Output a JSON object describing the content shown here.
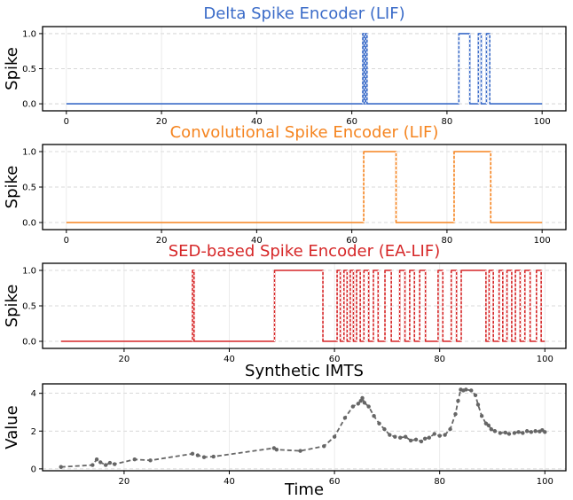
{
  "chart_data": [
    {
      "type": "line",
      "title": "Delta Spike Encoder (LIF)",
      "ylabel": "Spike",
      "xlabel": "",
      "color": "#3a6bc8",
      "xlim": [
        -5,
        105
      ],
      "ylim": [
        -0.1,
        1.1
      ],
      "xticks": [
        0,
        20,
        40,
        60,
        80,
        100
      ],
      "yticks": [
        0.0,
        0.5,
        1.0
      ],
      "ytick_labels": [
        "0.0",
        "0.5",
        "1.0"
      ],
      "x": [
        0,
        62.3,
        62.3,
        62.6,
        62.6,
        62.9,
        62.9,
        63.2,
        63.2,
        82.5,
        82.5,
        84.8,
        84.8,
        86.6,
        86.6,
        87.2,
        87.2,
        88.3,
        88.3,
        89.0,
        89.0,
        100
      ],
      "values": [
        0,
        0,
        1,
        1,
        0,
        0,
        1,
        1,
        0,
        0,
        1,
        1,
        0,
        0,
        1,
        1,
        0,
        0,
        1,
        1,
        0,
        0
      ]
    },
    {
      "type": "line",
      "title": "Convolutional Spike Encoder (LIF)",
      "ylabel": "Spike",
      "xlabel": "",
      "color": "#f5841f",
      "xlim": [
        -5,
        105
      ],
      "ylim": [
        -0.1,
        1.1
      ],
      "xticks": [
        0,
        20,
        40,
        60,
        80,
        100
      ],
      "yticks": [
        0.0,
        0.5,
        1.0
      ],
      "ytick_labels": [
        "0.0",
        "0.5",
        "1.0"
      ],
      "x": [
        0,
        62.5,
        62.5,
        69.3,
        69.3,
        81.5,
        81.5,
        89.2,
        89.2,
        100
      ],
      "values": [
        0,
        0,
        1,
        1,
        0,
        0,
        1,
        1,
        0,
        0
      ]
    },
    {
      "type": "line",
      "title": "SED-based Spike Encoder (EA-LIF)",
      "ylabel": "Spike",
      "xlabel": "",
      "color": "#d62728",
      "xlim": [
        4.5,
        104
      ],
      "ylim": [
        -0.1,
        1.1
      ],
      "xticks": [
        20,
        40,
        60,
        80,
        100
      ],
      "yticks": [
        0.0,
        0.5,
        1.0
      ],
      "ytick_labels": [
        "0.0",
        "0.5",
        "1.0"
      ],
      "x": [
        8,
        33,
        33,
        33.3,
        33.3,
        48.6,
        48.6,
        57.8,
        57.8,
        60.5,
        60.5,
        61.1,
        61.1,
        61.8,
        61.8,
        62.4,
        62.4,
        63.0,
        63.0,
        63.6,
        63.6,
        64.2,
        64.2,
        64.9,
        64.9,
        65.6,
        65.6,
        66.5,
        66.5,
        67.4,
        67.4,
        68.3,
        68.3,
        69.6,
        69.6,
        70.8,
        70.8,
        72.4,
        72.4,
        73.4,
        73.4,
        74.3,
        74.3,
        75.2,
        75.2,
        76.2,
        76.2,
        77.3,
        77.3,
        79.7,
        79.7,
        80.6,
        80.6,
        82.2,
        82.2,
        83.2,
        83.2,
        84.1,
        84.1,
        88.8,
        88.8,
        89.4,
        89.4,
        90.2,
        90.2,
        91.3,
        91.3,
        92.0,
        92.0,
        92.8,
        92.8,
        93.7,
        93.7,
        94.4,
        94.4,
        95.3,
        95.3,
        96.2,
        96.2,
        97.2,
        97.2,
        98.4,
        98.4,
        99.3,
        99.3,
        100
      ],
      "values": [
        0,
        0,
        1,
        1,
        0,
        0,
        1,
        1,
        0,
        0,
        1,
        1,
        0,
        0,
        1,
        1,
        0,
        0,
        1,
        1,
        0,
        0,
        1,
        1,
        0,
        0,
        1,
        1,
        0,
        0,
        1,
        1,
        0,
        0,
        1,
        1,
        0,
        0,
        1,
        1,
        0,
        0,
        1,
        1,
        0,
        0,
        1,
        1,
        0,
        0,
        1,
        1,
        0,
        0,
        1,
        1,
        0,
        0,
        1,
        1,
        0,
        0,
        1,
        1,
        0,
        0,
        1,
        1,
        0,
        0,
        1,
        1,
        0,
        0,
        1,
        1,
        0,
        0,
        1,
        1,
        0,
        0,
        1,
        1,
        0,
        0
      ]
    },
    {
      "type": "line",
      "title": "Synthetic IMTS",
      "ylabel": "Value",
      "xlabel": "Time",
      "color": "#666666",
      "marker": "circle",
      "xlim": [
        4.5,
        104
      ],
      "ylim": [
        -0.1,
        4.5
      ],
      "xticks": [
        20,
        40,
        60,
        80,
        100
      ],
      "yticks": [
        0,
        2,
        4
      ],
      "ytick_labels": [
        "0",
        "2",
        "4"
      ],
      "x": [
        8,
        14,
        14.8,
        15.5,
        16.5,
        17.3,
        18.2,
        22,
        25,
        33,
        34,
        35.2,
        37,
        48.5,
        49,
        53.5,
        58,
        60,
        62,
        63.5,
        64.5,
        65,
        65.3,
        65.7,
        66.5,
        67.5,
        68.5,
        69.5,
        70.5,
        71.5,
        72.5,
        73.5,
        74.5,
        75.5,
        76.5,
        77.2,
        78,
        79,
        80,
        81,
        82,
        83,
        83.5,
        84,
        84.5,
        85,
        86,
        86.8,
        87.3,
        88,
        88.8,
        89.3,
        89.8,
        90.5,
        91.5,
        92.5,
        93.2,
        94.2,
        95,
        95.8,
        96.6,
        97.4,
        98.2,
        99,
        99.5,
        100
      ],
      "values": [
        0.1,
        0.2,
        0.5,
        0.35,
        0.2,
        0.32,
        0.25,
        0.5,
        0.45,
        0.8,
        0.72,
        0.62,
        0.65,
        1.1,
        1.02,
        0.95,
        1.2,
        1.7,
        2.7,
        3.3,
        3.45,
        3.6,
        3.75,
        3.5,
        3.3,
        2.8,
        2.4,
        2.1,
        1.8,
        1.7,
        1.65,
        1.7,
        1.5,
        1.55,
        1.45,
        1.6,
        1.65,
        1.85,
        1.75,
        1.8,
        2.1,
        2.9,
        3.6,
        4.2,
        4.15,
        4.2,
        4.15,
        3.9,
        3.4,
        2.8,
        2.4,
        2.3,
        2.1,
        2.0,
        1.9,
        1.92,
        1.85,
        1.9,
        1.95,
        1.9,
        2.0,
        1.95,
        2.0,
        1.98,
        2.05,
        1.95
      ]
    }
  ]
}
